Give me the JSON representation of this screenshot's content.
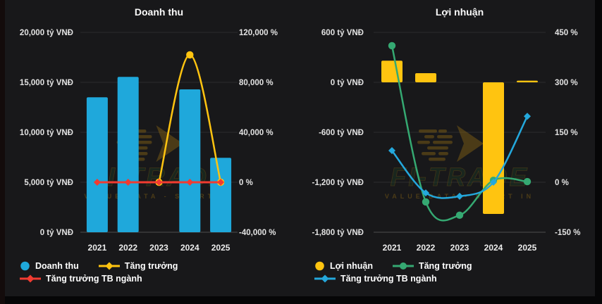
{
  "page": {
    "background": "#060607",
    "panel_background": "#18181a"
  },
  "watermark": {
    "brand": "FI-TRADE",
    "tagline": "VALUE DATA - SMART IN"
  },
  "chart_data": [
    {
      "type": "bar+line",
      "title": "Doanh thu",
      "categories": [
        "2021",
        "2022",
        "2023",
        "2024",
        "2025"
      ],
      "left_axis": {
        "unit": "tỷ VNĐ",
        "min": 0,
        "max": 20000,
        "tick_labels": [
          "20,000 tỷ VNĐ",
          "15,000 tỷ VNĐ",
          "10,000 tỷ VNĐ",
          "5,000 tỷ VNĐ",
          "0 tỷ VNĐ"
        ]
      },
      "right_axis": {
        "unit": "%",
        "min": -40000,
        "max": 120000,
        "tick_labels": [
          "120,000 %",
          "80,000 %",
          "40,000 %",
          "0 %",
          "-40,000 %"
        ]
      },
      "series": [
        {
          "name": "Doanh thu",
          "slug": "doanh-thu",
          "kind": "bar",
          "axis": "left",
          "color": "#1fa8db",
          "values": [
            13500,
            15550,
            null,
            14300,
            7450
          ]
        },
        {
          "name": "Tăng trưởng",
          "slug": "tang-truong",
          "kind": "line",
          "axis": "right",
          "color": "#ffc410",
          "marker": "circle",
          "values": [
            null,
            null,
            0,
            102000,
            0
          ]
        },
        {
          "name": "Tăng trưởng TB ngành",
          "slug": "tang-truong-tb-nganh",
          "kind": "line",
          "axis": "right",
          "color": "#f23b31",
          "marker": "diamond",
          "values": [
            0,
            0,
            0,
            0,
            0
          ]
        }
      ],
      "legend": [
        {
          "label": "Doanh thu",
          "color": "#1fa8db",
          "shape": "dot",
          "row": 0
        },
        {
          "label": "Tăng trưởng",
          "color": "#ffc410",
          "shape": "line-diamond",
          "row": 0
        },
        {
          "label": "Tăng trưởng TB ngành",
          "color": "#f23b31",
          "shape": "line-diamond",
          "row": 1
        }
      ]
    },
    {
      "type": "bar+line",
      "title": "Lợi nhuận",
      "categories": [
        "2021",
        "2022",
        "2023",
        "2024",
        "2025"
      ],
      "left_axis": {
        "unit": "tỷ VNĐ",
        "min": -1800,
        "max": 600,
        "tick_labels": [
          "600 tỷ VNĐ",
          "0 tỷ VNĐ",
          "-600 tỷ VNĐ",
          "-1,200 tỷ VNĐ",
          "-1,800 tỷ VNĐ"
        ]
      },
      "right_axis": {
        "unit": "%",
        "min": -150,
        "max": 450,
        "tick_labels": [
          "450 %",
          "300 %",
          "150 %",
          "0 %",
          "-150 %"
        ]
      },
      "series": [
        {
          "name": "Lợi nhuận",
          "slug": "loi-nhuan",
          "kind": "bar",
          "axis": "left",
          "color": "#ffc410",
          "values": [
            260,
            110,
            null,
            -1580,
            20
          ]
        },
        {
          "name": "Tăng trưởng",
          "slug": "tang-truong",
          "kind": "line",
          "axis": "right",
          "color": "#35a972",
          "marker": "circle",
          "values": [
            410,
            -59,
            -99,
            6,
            2
          ]
        },
        {
          "name": "Tăng trưởng TB ngành",
          "slug": "tang-truong-tb-nganh",
          "kind": "line",
          "axis": "right",
          "color": "#24a8dc",
          "marker": "diamond",
          "values": [
            95,
            -32,
            -42,
            0,
            198
          ]
        }
      ],
      "legend": [
        {
          "label": "Lợi nhuận",
          "color": "#ffc410",
          "shape": "dot",
          "row": 0
        },
        {
          "label": "Tăng trưởng",
          "color": "#35a972",
          "shape": "line-circle",
          "row": 0
        },
        {
          "label": "Tăng trưởng TB ngành",
          "color": "#24a8dc",
          "shape": "line-diamond",
          "row": 1
        }
      ]
    }
  ]
}
